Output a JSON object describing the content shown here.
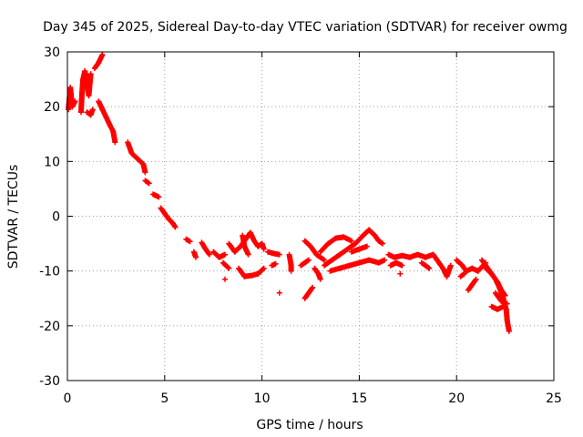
{
  "chart_data": {
    "type": "scatter",
    "title": "Day 345 of 2025, Sidereal Day-to-day VTEC variation (SDTVAR) for receiver owmg",
    "xlabel": "GPS time / hours",
    "ylabel": "SDTVAR / TECUs",
    "xlim": [
      0,
      25
    ],
    "ylim": [
      -30,
      30
    ],
    "xticks": [
      0,
      5,
      10,
      15,
      20,
      25
    ],
    "yticks": [
      -30,
      -20,
      -10,
      0,
      10,
      20,
      30
    ],
    "xtick_labels": [
      "0",
      "5",
      "10",
      "15",
      "20",
      "25"
    ],
    "ytick_labels": [
      "-30",
      "-20",
      "-10",
      "0",
      "10",
      "20",
      "30"
    ],
    "grid": true,
    "marker": "+",
    "series_color": "#ff0000",
    "series": [
      {
        "name": "SDTVAR",
        "segments": [
          [
            [
              0.05,
              19.5
            ],
            [
              0.15,
              23.5
            ],
            [
              0.25,
              20.0
            ],
            [
              0.4,
              21.0
            ]
          ],
          [
            [
              0.7,
              19.0
            ],
            [
              0.75,
              22.5
            ],
            [
              0.8,
              25.0
            ],
            [
              0.9,
              26.5
            ],
            [
              1.0,
              24.0
            ],
            [
              1.1,
              22.0
            ],
            [
              1.2,
              26.0
            ]
          ],
          [
            [
              1.0,
              19.0
            ],
            [
              1.2,
              18.5
            ],
            [
              1.3,
              19.5
            ]
          ],
          [
            [
              1.4,
              27.0
            ],
            [
              1.6,
              28.0
            ],
            [
              1.8,
              29.5
            ]
          ],
          [
            [
              1.6,
              21.0
            ],
            [
              1.8,
              19.5
            ],
            [
              2.0,
              18.0
            ],
            [
              2.2,
              16.5
            ],
            [
              2.35,
              15.5
            ],
            [
              2.45,
              13.5
            ]
          ],
          [
            [
              3.1,
              13.5
            ],
            [
              3.3,
              11.5
            ],
            [
              3.6,
              10.5
            ],
            [
              3.9,
              9.5
            ],
            [
              4.0,
              8.0
            ]
          ],
          [
            [
              4.0,
              6.5
            ],
            [
              4.2,
              6.0
            ]
          ],
          [
            [
              4.4,
              4.0
            ],
            [
              4.7,
              3.5
            ]
          ],
          [
            [
              4.8,
              1.5
            ],
            [
              5.0,
              0.5
            ],
            [
              5.2,
              -0.5
            ],
            [
              5.4,
              -1.2
            ],
            [
              5.55,
              -2.0
            ]
          ],
          [
            [
              6.1,
              -4.2
            ],
            [
              6.3,
              -4.6
            ]
          ],
          [
            [
              6.5,
              -6.5
            ],
            [
              6.6,
              -7.5
            ]
          ],
          [
            [
              6.9,
              -4.8
            ],
            [
              7.1,
              -6.0
            ],
            [
              7.3,
              -7.0
            ]
          ],
          [
            [
              7.5,
              -6.5
            ],
            [
              7.8,
              -7.5
            ],
            [
              8.1,
              -7.0
            ]
          ],
          [
            [
              8.0,
              -8.5
            ],
            [
              8.3,
              -9.5
            ]
          ],
          [
            [
              8.1,
              -11.5
            ]
          ],
          [
            [
              8.3,
              -5.0
            ],
            [
              8.6,
              -6.5
            ],
            [
              8.9,
              -5.5
            ],
            [
              9.2,
              -4.0
            ],
            [
              9.4,
              -3.0
            ],
            [
              9.6,
              -4.5
            ],
            [
              9.8,
              -5.5
            ],
            [
              10.0,
              -5.0
            ],
            [
              10.1,
              -6.0
            ]
          ],
          [
            [
              9.0,
              -3.5
            ],
            [
              9.1,
              -5.5
            ],
            [
              9.3,
              -7.0
            ]
          ],
          [
            [
              8.8,
              -9.5
            ],
            [
              9.1,
              -11.0
            ],
            [
              9.5,
              -10.8
            ],
            [
              9.8,
              -10.5
            ],
            [
              10.1,
              -9.5
            ]
          ],
          [
            [
              10.3,
              -6.5
            ],
            [
              10.6,
              -6.8
            ],
            [
              10.9,
              -7.0
            ]
          ],
          [
            [
              10.5,
              -9.0
            ],
            [
              10.7,
              -8.7
            ]
          ],
          [
            [
              10.9,
              -14.0
            ]
          ],
          [
            [
              11.4,
              -7.0
            ],
            [
              11.5,
              -9.0
            ],
            [
              11.5,
              -10.0
            ]
          ],
          [
            [
              12.0,
              -9.0
            ],
            [
              12.2,
              -8.5
            ],
            [
              12.4,
              -8.0
            ]
          ],
          [
            [
              12.2,
              -4.5
            ],
            [
              12.5,
              -5.5
            ],
            [
              12.8,
              -7.0
            ],
            [
              13.0,
              -7.5
            ],
            [
              13.2,
              -8.0
            ]
          ],
          [
            [
              12.2,
              -15.0
            ],
            [
              12.4,
              -14.0
            ],
            [
              12.6,
              -13.0
            ]
          ],
          [
            [
              12.7,
              -9.5
            ],
            [
              12.9,
              -10.5
            ],
            [
              13.0,
              -11.5
            ]
          ],
          [
            [
              13.0,
              -6.5
            ],
            [
              13.4,
              -5.0
            ],
            [
              13.8,
              -4.0
            ],
            [
              14.2,
              -3.8
            ],
            [
              14.6,
              -4.5
            ]
          ],
          [
            [
              13.2,
              -9.0
            ],
            [
              13.6,
              -8.0
            ],
            [
              14.0,
              -7.0
            ],
            [
              14.4,
              -6.0
            ],
            [
              14.8,
              -5.0
            ],
            [
              15.2,
              -3.5
            ],
            [
              15.5,
              -2.5
            ],
            [
              15.8,
              -3.5
            ],
            [
              16.0,
              -4.5
            ],
            [
              16.2,
              -5.0
            ]
          ],
          [
            [
              13.5,
              -10.0
            ],
            [
              14.0,
              -9.5
            ],
            [
              14.5,
              -9.0
            ],
            [
              15.0,
              -8.5
            ],
            [
              15.5,
              -8.0
            ],
            [
              16.0,
              -8.5
            ],
            [
              16.3,
              -8.0
            ]
          ],
          [
            [
              14.6,
              -6.5
            ],
            [
              15.0,
              -6.0
            ],
            [
              15.4,
              -5.5
            ]
          ],
          [
            [
              16.5,
              -7.0
            ],
            [
              16.8,
              -7.5
            ],
            [
              17.2,
              -7.2
            ],
            [
              17.6,
              -7.5
            ],
            [
              18.0,
              -7.0
            ],
            [
              18.4,
              -7.5
            ],
            [
              18.8,
              -7.0
            ],
            [
              19.0,
              -8.0
            ],
            [
              19.3,
              -9.5
            ],
            [
              19.5,
              -11.0
            ],
            [
              19.7,
              -9.0
            ]
          ],
          [
            [
              16.6,
              -9.0
            ],
            [
              16.9,
              -8.5
            ],
            [
              17.2,
              -9.0
            ]
          ],
          [
            [
              17.1,
              -10.5
            ]
          ],
          [
            [
              18.2,
              -8.5
            ],
            [
              18.6,
              -9.5
            ]
          ],
          [
            [
              20.0,
              -8.0
            ],
            [
              20.3,
              -9.0
            ],
            [
              20.5,
              -10.0
            ],
            [
              20.8,
              -9.5
            ],
            [
              21.1,
              -10.0
            ],
            [
              21.5,
              -8.5
            ]
          ],
          [
            [
              20.2,
              -11.0
            ],
            [
              20.4,
              -10.5
            ]
          ],
          [
            [
              20.6,
              -13.5
            ],
            [
              20.8,
              -12.5
            ],
            [
              21.0,
              -11.5
            ]
          ],
          [
            [
              21.3,
              -8.0
            ],
            [
              21.6,
              -9.5
            ],
            [
              21.9,
              -11.0
            ],
            [
              22.1,
              -12.0
            ],
            [
              22.3,
              -13.5
            ],
            [
              22.5,
              -14.5
            ]
          ],
          [
            [
              21.5,
              -9.5
            ],
            [
              21.8,
              -10.5
            ],
            [
              22.0,
              -11.5
            ],
            [
              22.2,
              -13.0
            ],
            [
              22.4,
              -15.0
            ],
            [
              22.55,
              -17.0
            ],
            [
              22.6,
              -19.0
            ],
            [
              22.7,
              -21.0
            ]
          ],
          [
            [
              21.8,
              -16.5
            ],
            [
              22.1,
              -17.0
            ],
            [
              22.4,
              -16.5
            ]
          ],
          [
            [
              22.0,
              -14.0
            ],
            [
              22.3,
              -15.5
            ],
            [
              22.6,
              -16.0
            ]
          ]
        ]
      }
    ]
  }
}
